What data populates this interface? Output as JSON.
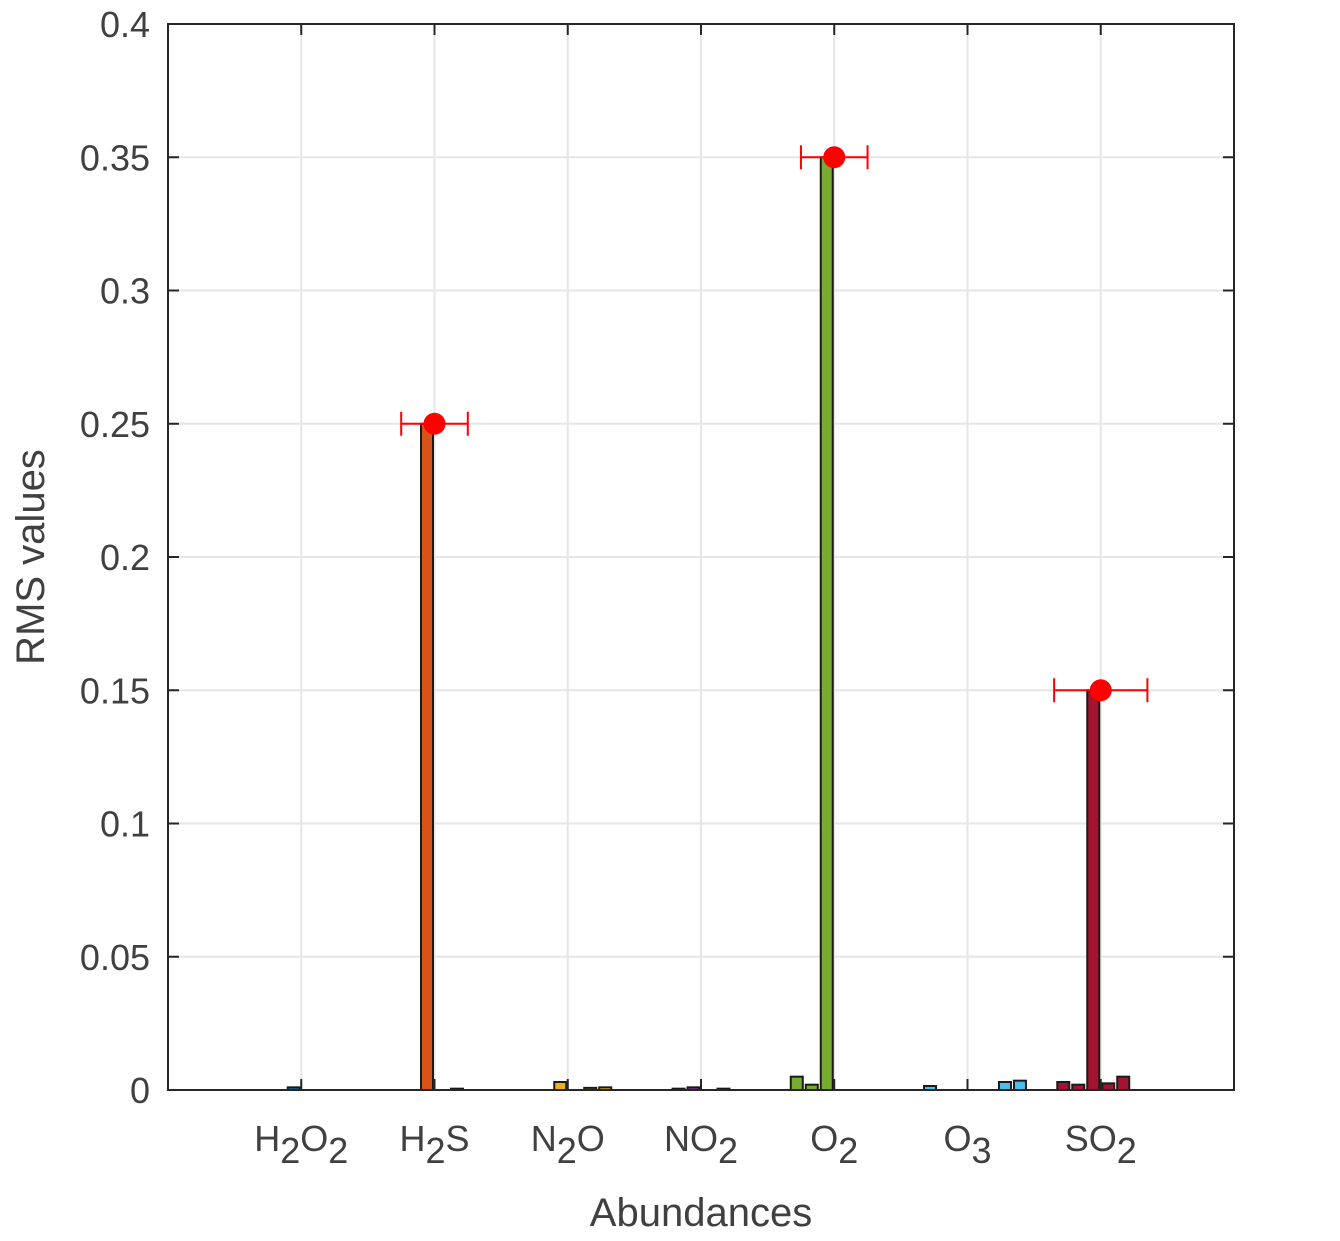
{
  "chart_data": {
    "type": "bar",
    "xlabel": "Abundances",
    "ylabel": "RMS values",
    "ylim": [
      0,
      0.4
    ],
    "yticks": [
      "0",
      "0.05",
      "0.1",
      "0.15",
      "0.2",
      "0.25",
      "0.3",
      "0.35",
      "0.4"
    ],
    "categories": [
      {
        "base": "H",
        "sub": "2",
        "base2": "O",
        "sub2": "2"
      },
      {
        "base": "H",
        "sub": "2",
        "base2": "S",
        "sub2": ""
      },
      {
        "base": "N",
        "sub": "2",
        "base2": "O",
        "sub2": ""
      },
      {
        "base": "NO",
        "sub": "2",
        "base2": "",
        "sub2": ""
      },
      {
        "base": "O",
        "sub": "2",
        "base2": "",
        "sub2": ""
      },
      {
        "base": "O",
        "sub": "3",
        "base2": "",
        "sub2": ""
      },
      {
        "base": "SO",
        "sub": "2",
        "base2": "",
        "sub2": ""
      }
    ],
    "group_colors": [
      "#0072BD",
      "#D95319",
      "#EDB120",
      "#7E2F8E",
      "#77AC30",
      "#4DBEEE",
      "#A2142F"
    ],
    "values": [
      [
        0,
        0,
        0,
        0.001,
        0,
        0,
        0,
        0
      ],
      [
        0,
        0,
        0,
        0.25,
        0,
        0.0005,
        0,
        0
      ],
      [
        0,
        0,
        0,
        0.003,
        0,
        0.0008,
        0.001,
        0
      ],
      [
        0,
        0,
        0.0005,
        0.001,
        0,
        0.0005,
        0,
        0
      ],
      [
        0,
        0.005,
        0.002,
        0.35,
        0,
        0,
        0,
        0
      ],
      [
        0,
        0.0015,
        0,
        0,
        0,
        0,
        0.003,
        0.0035
      ],
      [
        0,
        0.003,
        0.002,
        0.15,
        0.0025,
        0.005,
        0,
        0
      ]
    ],
    "markers": [
      {
        "category_index": 1,
        "value": 0.25,
        "x_error": 0.25
      },
      {
        "category_index": 4,
        "value": 0.35,
        "x_error": 0.25
      },
      {
        "category_index": 6,
        "value": 0.15,
        "x_error": 0.35
      }
    ],
    "marker_color": "#FF0000",
    "grid": true
  }
}
